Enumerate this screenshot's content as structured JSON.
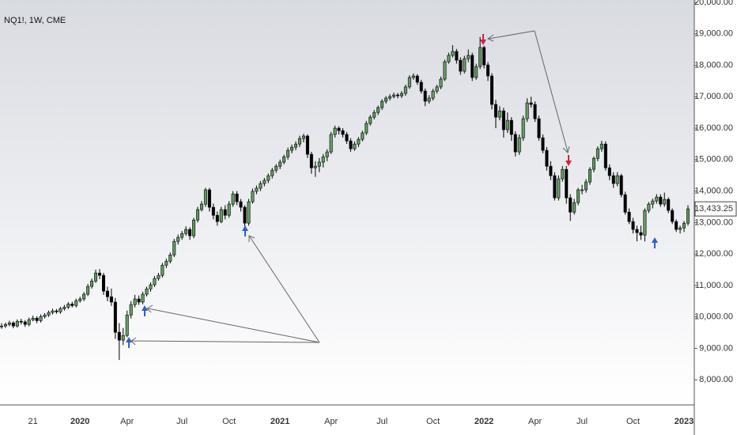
{
  "chart_data": {
    "type": "candlestick",
    "title": "NQ1!, 1W, CME",
    "up_color": "#5f9f5f",
    "down_color": "#000000",
    "ylim": [
      7200,
      20075
    ],
    "yticks": [
      {
        "value": 8000,
        "label": "8,000.00"
      },
      {
        "value": 9000,
        "label": "9,000.00"
      },
      {
        "value": 10000,
        "label": "10,000.00"
      },
      {
        "value": 11000,
        "label": "11,000.00"
      },
      {
        "value": 12000,
        "label": "12,000.00"
      },
      {
        "value": 13000,
        "label": "13,000.00"
      },
      {
        "value": 14000,
        "label": "14,000.00"
      },
      {
        "value": 15000,
        "label": "15,000.00"
      },
      {
        "value": 16000,
        "label": "16,000.00"
      },
      {
        "value": 17000,
        "label": "17,000.00"
      },
      {
        "value": 18000,
        "label": "18,000.00"
      },
      {
        "value": 19000,
        "label": "19,000.00"
      },
      {
        "value": 20000,
        "label": "20,000.00"
      }
    ],
    "last_price": {
      "value": 13433.25,
      "label": "13,433.25"
    },
    "categories": [
      null,
      null,
      null,
      null,
      null,
      null,
      null,
      null,
      "21",
      null,
      null,
      null,
      null,
      null,
      null,
      null,
      null,
      null,
      null,
      null,
      "2020",
      null,
      null,
      null,
      null,
      null,
      null,
      null,
      null,
      null,
      null,
      null,
      "Apr",
      null,
      null,
      null,
      null,
      null,
      null,
      null,
      null,
      null,
      null,
      null,
      null,
      null,
      "Jul",
      null,
      null,
      null,
      null,
      null,
      null,
      null,
      null,
      null,
      null,
      null,
      "Oct",
      null,
      null,
      null,
      null,
      null,
      null,
      null,
      null,
      null,
      null,
      null,
      null,
      "2021",
      null,
      null,
      null,
      null,
      null,
      null,
      null,
      null,
      null,
      null,
      null,
      null,
      "Apr",
      null,
      null,
      null,
      null,
      null,
      null,
      null,
      null,
      null,
      null,
      null,
      null,
      "Jul",
      null,
      null,
      null,
      null,
      null,
      null,
      null,
      null,
      null,
      null,
      null,
      null,
      "Oct",
      null,
      null,
      null,
      null,
      null,
      null,
      null,
      null,
      null,
      null,
      null,
      null,
      "2022",
      null,
      null,
      null,
      null,
      null,
      null,
      null,
      null,
      null,
      null,
      null,
      null,
      "Apr",
      null,
      null,
      null,
      null,
      null,
      null,
      null,
      null,
      null,
      null,
      null,
      "Jul",
      null,
      null,
      null,
      null,
      null,
      null,
      null,
      null,
      null,
      null,
      null,
      null,
      "Oct",
      null,
      null,
      null,
      null,
      null,
      null,
      null,
      null,
      null,
      null,
      null,
      null,
      "2023",
      null
    ],
    "ohlc": [
      [
        9690,
        9800,
        9620,
        9710
      ],
      [
        9710,
        9820,
        9650,
        9760
      ],
      [
        9760,
        9880,
        9700,
        9810
      ],
      [
        9810,
        9860,
        9640,
        9710
      ],
      [
        9710,
        9920,
        9660,
        9860
      ],
      [
        9860,
        9940,
        9760,
        9840
      ],
      [
        9840,
        9900,
        9680,
        9760
      ],
      [
        9760,
        9980,
        9700,
        9910
      ],
      [
        9910,
        10040,
        9860,
        9960
      ],
      [
        9960,
        10020,
        9800,
        9880
      ],
      [
        9880,
        10080,
        9820,
        10010
      ],
      [
        10010,
        10120,
        9950,
        10060
      ],
      [
        10060,
        10200,
        10000,
        10140
      ],
      [
        10140,
        10260,
        10080,
        10190
      ],
      [
        10190,
        10250,
        10100,
        10160
      ],
      [
        10160,
        10320,
        10100,
        10260
      ],
      [
        10260,
        10380,
        10200,
        10310
      ],
      [
        10310,
        10470,
        10250,
        10410
      ],
      [
        10410,
        10480,
        10300,
        10360
      ],
      [
        10360,
        10580,
        10300,
        10515
      ],
      [
        10515,
        10640,
        10450,
        10570
      ],
      [
        10570,
        10790,
        10500,
        10720
      ],
      [
        10720,
        11050,
        10660,
        10970
      ],
      [
        10970,
        11220,
        10900,
        11140
      ],
      [
        11140,
        11500,
        11080,
        11395
      ],
      [
        11395,
        11520,
        11200,
        11320
      ],
      [
        11320,
        11400,
        10700,
        10820
      ],
      [
        10820,
        10960,
        10500,
        10640
      ],
      [
        10640,
        10900,
        10350,
        10470
      ],
      [
        10470,
        10600,
        9300,
        9510
      ],
      [
        9510,
        9800,
        8630,
        9260
      ],
      [
        9260,
        9650,
        9100,
        9410
      ],
      [
        9410,
        10200,
        9350,
        10060
      ],
      [
        10060,
        10500,
        9950,
        10390
      ],
      [
        10390,
        10700,
        10300,
        10570
      ],
      [
        10570,
        10680,
        10380,
        10470
      ],
      [
        10470,
        10800,
        10400,
        10720
      ],
      [
        10720,
        10960,
        10650,
        10890
      ],
      [
        10890,
        11100,
        10800,
        11020
      ],
      [
        11020,
        11300,
        10950,
        11220
      ],
      [
        11220,
        11400,
        11150,
        11320
      ],
      [
        11320,
        11720,
        11250,
        11645
      ],
      [
        11645,
        11850,
        11550,
        11770
      ],
      [
        11770,
        12050,
        11700,
        11970
      ],
      [
        11970,
        12480,
        11900,
        12400
      ],
      [
        12400,
        12620,
        12300,
        12530
      ],
      [
        12530,
        12730,
        12450,
        12650
      ],
      [
        12650,
        12880,
        12580,
        12780
      ],
      [
        12780,
        12850,
        12450,
        12580
      ],
      [
        12580,
        13150,
        12500,
        13080
      ],
      [
        13080,
        13500,
        13000,
        13410
      ],
      [
        13410,
        13680,
        13350,
        13585
      ],
      [
        13585,
        14100,
        13500,
        14040
      ],
      [
        14040,
        14100,
        13350,
        13485
      ],
      [
        13485,
        13600,
        13100,
        13230
      ],
      [
        13230,
        13350,
        12900,
        13030
      ],
      [
        13030,
        13500,
        12980,
        13410
      ],
      [
        13410,
        13550,
        13100,
        13230
      ],
      [
        13230,
        13680,
        13150,
        13585
      ],
      [
        13585,
        14000,
        13500,
        13910
      ],
      [
        13910,
        14000,
        13550,
        13660
      ],
      [
        13660,
        13750,
        13350,
        13485
      ],
      [
        13485,
        13550,
        12820,
        12980
      ],
      [
        12980,
        13750,
        12900,
        13660
      ],
      [
        13660,
        14080,
        13600,
        13990
      ],
      [
        13990,
        14180,
        13900,
        14090
      ],
      [
        14090,
        14320,
        14000,
        14240
      ],
      [
        14240,
        14420,
        14150,
        14340
      ],
      [
        14340,
        14560,
        14250,
        14490
      ],
      [
        14490,
        14740,
        14400,
        14665
      ],
      [
        14665,
        14860,
        14580,
        14790
      ],
      [
        14790,
        15000,
        14700,
        14920
      ],
      [
        14920,
        15160,
        14850,
        15090
      ],
      [
        15090,
        15380,
        15000,
        15295
      ],
      [
        15295,
        15480,
        15200,
        15395
      ],
      [
        15395,
        15580,
        15300,
        15495
      ],
      [
        15495,
        15760,
        15400,
        15670
      ],
      [
        15670,
        15820,
        15550,
        15750
      ],
      [
        15750,
        15800,
        15050,
        15170
      ],
      [
        15170,
        15250,
        14550,
        14740
      ],
      [
        14740,
        14950,
        14450,
        14790
      ],
      [
        14790,
        15050,
        14600,
        14920
      ],
      [
        14920,
        15180,
        14750,
        15090
      ],
      [
        15090,
        15330,
        14950,
        15245
      ],
      [
        15245,
        15880,
        15180,
        15800
      ],
      [
        15800,
        16080,
        15700,
        16000
      ],
      [
        16000,
        16060,
        15800,
        15920
      ],
      [
        15920,
        16000,
        15700,
        15800
      ],
      [
        15800,
        15880,
        15500,
        15595
      ],
      [
        15595,
        15680,
        15250,
        15345
      ],
      [
        15345,
        15580,
        15280,
        15495
      ],
      [
        15495,
        15720,
        15400,
        15645
      ],
      [
        15645,
        15920,
        15580,
        15850
      ],
      [
        15850,
        16230,
        15780,
        16150
      ],
      [
        16150,
        16420,
        16080,
        16350
      ],
      [
        16350,
        16580,
        16280,
        16500
      ],
      [
        16500,
        16720,
        16420,
        16655
      ],
      [
        16655,
        16920,
        16580,
        16855
      ],
      [
        16855,
        17020,
        16780,
        16955
      ],
      [
        16955,
        17080,
        16880,
        17005
      ],
      [
        17005,
        17130,
        16950,
        17055
      ],
      [
        17055,
        17120,
        16950,
        17030
      ],
      [
        17030,
        17180,
        16960,
        17105
      ],
      [
        17105,
        17380,
        17030,
        17310
      ],
      [
        17310,
        17680,
        17250,
        17610
      ],
      [
        17610,
        17740,
        17540,
        17660
      ],
      [
        17660,
        17720,
        17380,
        17460
      ],
      [
        17460,
        17540,
        17100,
        17180
      ],
      [
        17180,
        17260,
        16700,
        16855
      ],
      [
        16855,
        17050,
        16780,
        16955
      ],
      [
        16955,
        17250,
        16880,
        17180
      ],
      [
        17180,
        17380,
        17100,
        17310
      ],
      [
        17310,
        17640,
        17240,
        17560
      ],
      [
        17560,
        18180,
        17500,
        18110
      ],
      [
        18110,
        18400,
        18050,
        18315
      ],
      [
        18315,
        18640,
        18250,
        18440
      ],
      [
        18440,
        18520,
        18050,
        18160
      ],
      [
        18160,
        18250,
        17700,
        17810
      ],
      [
        17810,
        18300,
        17740,
        18210
      ],
      [
        18210,
        18500,
        18100,
        18315
      ],
      [
        18315,
        18400,
        17500,
        17610
      ],
      [
        17610,
        18050,
        17540,
        17960
      ],
      [
        17960,
        18900,
        17880,
        18565
      ],
      [
        18565,
        18620,
        17900,
        18010
      ],
      [
        18010,
        18100,
        17500,
        17660
      ],
      [
        17660,
        17750,
        16600,
        16755
      ],
      [
        16755,
        16900,
        16000,
        16350
      ],
      [
        16350,
        16700,
        16250,
        16550
      ],
      [
        16550,
        16650,
        15700,
        15950
      ],
      [
        15950,
        16500,
        15850,
        16250
      ],
      [
        16250,
        16350,
        15600,
        15800
      ],
      [
        15800,
        15900,
        15100,
        15245
      ],
      [
        15245,
        15800,
        15150,
        15695
      ],
      [
        15695,
        16400,
        15600,
        16300
      ],
      [
        16300,
        16950,
        16200,
        16805
      ],
      [
        16805,
        17000,
        16650,
        16755
      ],
      [
        16755,
        16850,
        16200,
        16300
      ],
      [
        16300,
        16400,
        15600,
        15695
      ],
      [
        15695,
        15800,
        15200,
        15295
      ],
      [
        15295,
        15400,
        14650,
        14790
      ],
      [
        14790,
        14950,
        14350,
        14490
      ],
      [
        14490,
        14600,
        13700,
        13785
      ],
      [
        13785,
        14500,
        13700,
        14390
      ],
      [
        14390,
        14800,
        14300,
        14690
      ],
      [
        14690,
        14800,
        13600,
        13785
      ],
      [
        13785,
        13900,
        13050,
        13330
      ],
      [
        13330,
        13750,
        13250,
        13635
      ],
      [
        13635,
        14100,
        13550,
        14040
      ],
      [
        14040,
        14200,
        13900,
        14040
      ],
      [
        14040,
        14380,
        13950,
        14290
      ],
      [
        14290,
        14760,
        14200,
        14690
      ],
      [
        14690,
        15100,
        14600,
        15040
      ],
      [
        15040,
        15420,
        14950,
        15345
      ],
      [
        15345,
        15600,
        15250,
        15495
      ],
      [
        15495,
        15580,
        14650,
        14740
      ],
      [
        14740,
        14850,
        14350,
        14490
      ],
      [
        14490,
        14600,
        14100,
        14240
      ],
      [
        14240,
        14600,
        14150,
        14490
      ],
      [
        14490,
        14550,
        13800,
        13885
      ],
      [
        13885,
        13980,
        13250,
        13330
      ],
      [
        13330,
        13450,
        12950,
        13030
      ],
      [
        13030,
        13150,
        12650,
        12780
      ],
      [
        12780,
        12900,
        12400,
        12680
      ],
      [
        12680,
        12900,
        12450,
        12600
      ],
      [
        12600,
        13450,
        12400,
        13385
      ],
      [
        13385,
        13650,
        13300,
        13585
      ],
      [
        13585,
        13760,
        13450,
        13685
      ],
      [
        13685,
        13900,
        13600,
        13810
      ],
      [
        13810,
        13900,
        13500,
        13585
      ],
      [
        13585,
        13950,
        13500,
        13735
      ],
      [
        13735,
        13800,
        13300,
        13385
      ],
      [
        13385,
        13450,
        12950,
        13030
      ],
      [
        13030,
        13100,
        12700,
        12780
      ],
      [
        12780,
        12900,
        12650,
        12830
      ],
      [
        12830,
        13050,
        12700,
        12980
      ],
      [
        12980,
        13550,
        12900,
        13433.25
      ]
    ]
  }
}
